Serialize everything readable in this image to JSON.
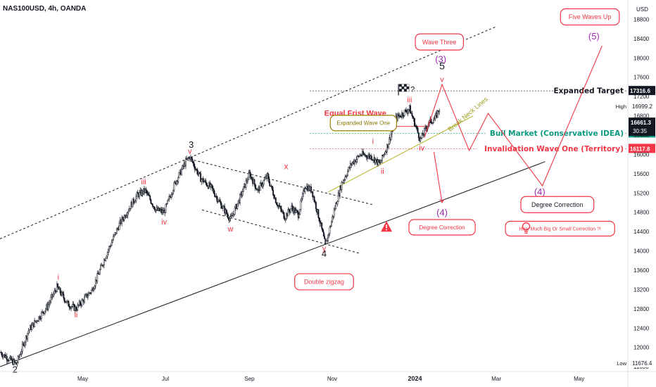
{
  "chart_data": {
    "type": "line",
    "title": "NAS100USD, 4h, OANDA",
    "currency": "USD",
    "yaxis": {
      "range": [
        11500,
        19200
      ],
      "ticks": [
        11600,
        12000,
        12400,
        12800,
        13200,
        13600,
        14000,
        14400,
        14800,
        15200,
        15600,
        16000,
        16400,
        16800,
        17200,
        17600,
        18000,
        18400,
        18800
      ]
    },
    "xaxis": {
      "range": [
        "2023-03-01",
        "2024-06-06"
      ],
      "ticks": [
        {
          "date": "2023-05-01",
          "label": "May"
        },
        {
          "date": "2023-07-01",
          "label": "Jul"
        },
        {
          "date": "2023-09-01",
          "label": "Sep"
        },
        {
          "date": "2023-11-01",
          "label": "Nov"
        },
        {
          "date": "2024-01-01",
          "label": "2024"
        },
        {
          "date": "2024-03-01",
          "label": "Mar"
        },
        {
          "date": "2024-05-01",
          "label": "May"
        }
      ]
    },
    "price_series": [
      {
        "date": "2023-03-01",
        "price": 11900
      },
      {
        "date": "2023-03-13",
        "price": 11650
      },
      {
        "date": "2023-03-22",
        "price": 12350
      },
      {
        "date": "2023-04-05",
        "price": 12850
      },
      {
        "date": "2023-04-12",
        "price": 13250
      },
      {
        "date": "2023-04-20",
        "price": 12900
      },
      {
        "date": "2023-04-26",
        "price": 12800
      },
      {
        "date": "2023-05-08",
        "price": 13200
      },
      {
        "date": "2023-05-18",
        "price": 13900
      },
      {
        "date": "2023-05-28",
        "price": 14550
      },
      {
        "date": "2023-06-10",
        "price": 15150
      },
      {
        "date": "2023-06-16",
        "price": 15250
      },
      {
        "date": "2023-06-24",
        "price": 14850
      },
      {
        "date": "2023-06-30",
        "price": 14800
      },
      {
        "date": "2023-07-08",
        "price": 15400
      },
      {
        "date": "2023-07-16",
        "price": 15850
      },
      {
        "date": "2023-07-19",
        "price": 15950
      },
      {
        "date": "2023-07-27",
        "price": 15500
      },
      {
        "date": "2023-08-04",
        "price": 15300
      },
      {
        "date": "2023-08-10",
        "price": 15000
      },
      {
        "date": "2023-08-18",
        "price": 14650
      },
      {
        "date": "2023-08-25",
        "price": 15100
      },
      {
        "date": "2023-09-01",
        "price": 15600
      },
      {
        "date": "2023-09-07",
        "price": 15250
      },
      {
        "date": "2023-09-14",
        "price": 15550
      },
      {
        "date": "2023-09-21",
        "price": 15000
      },
      {
        "date": "2023-09-27",
        "price": 14700
      },
      {
        "date": "2023-10-02",
        "price": 14900
      },
      {
        "date": "2023-10-07",
        "price": 14750
      },
      {
        "date": "2023-10-12",
        "price": 15350
      },
      {
        "date": "2023-10-17",
        "price": 15250
      },
      {
        "date": "2023-10-23",
        "price": 14600
      },
      {
        "date": "2023-10-27",
        "price": 14100
      },
      {
        "date": "2023-11-03",
        "price": 14900
      },
      {
        "date": "2023-11-08",
        "price": 15400
      },
      {
        "date": "2023-11-15",
        "price": 15800
      },
      {
        "date": "2023-11-22",
        "price": 16000
      },
      {
        "date": "2023-11-30",
        "price": 15950
      },
      {
        "date": "2023-12-06",
        "price": 15800
      },
      {
        "date": "2023-12-12",
        "price": 16200
      },
      {
        "date": "2023-12-18",
        "price": 16750
      },
      {
        "date": "2023-12-28",
        "price": 16950
      },
      {
        "date": "2024-01-05",
        "price": 16300
      },
      {
        "date": "2024-01-11",
        "price": 16650
      },
      {
        "date": "2024-01-16",
        "price": 16750
      },
      {
        "date": "2024-01-19",
        "price": 16950
      }
    ],
    "price_lines": [
      {
        "label": "Expanded Target",
        "price": 17316.6,
        "value_label": "17316.6",
        "color": "#131722"
      },
      {
        "label": "Bull Market (Conservative IDEA)",
        "price": 16438.3,
        "value_label": "16438.3",
        "color": "#089981"
      },
      {
        "label": "Invalidation Wave One (Territory)",
        "price": 16117.8,
        "value_label": "16117.8",
        "color": "#f23645"
      }
    ],
    "price_tags": [
      {
        "label": "High",
        "price": 16999.2,
        "value_label": "16999.2"
      },
      {
        "label": "Low",
        "price": 11676.4,
        "value_label": "11676.4"
      },
      {
        "label": "",
        "price": 16661.3,
        "value_label": "16661.3",
        "sub": "30:35"
      }
    ],
    "wave_labels": [
      {
        "text": "2",
        "date": "2023-03-12",
        "price": 11480,
        "color": "#131722",
        "size": 13
      },
      {
        "text": "i",
        "date": "2023-04-13",
        "price": 13400,
        "color": "#f23645",
        "size": 11
      },
      {
        "text": "ii",
        "date": "2023-04-26",
        "price": 12620,
        "color": "#f23645",
        "size": 11
      },
      {
        "text": "iii",
        "date": "2023-06-15",
        "price": 15380,
        "color": "#f23645",
        "size": 11
      },
      {
        "text": "iv",
        "date": "2023-06-30",
        "price": 14550,
        "color": "#f23645",
        "size": 11
      },
      {
        "text": "3",
        "date": "2023-07-20",
        "price": 16140,
        "color": "#131722",
        "size": 13
      },
      {
        "text": "v",
        "date": "2023-07-19",
        "price": 16010,
        "color": "#f23645",
        "size": 11
      },
      {
        "text": "w",
        "date": "2023-08-18",
        "price": 14400,
        "color": "#f23645",
        "size": 11
      },
      {
        "text": "x",
        "date": "2023-09-28",
        "price": 15690,
        "color": "#f23645",
        "size": 12
      },
      {
        "text": "y",
        "date": "2023-10-26",
        "price": 14000,
        "color": "#f23645",
        "size": 11
      },
      {
        "text": "4",
        "date": "2023-10-26",
        "price": 13880,
        "color": "#131722",
        "size": 13
      },
      {
        "text": "i",
        "date": "2023-12-01",
        "price": 16220,
        "color": "#f23645",
        "size": 11
      },
      {
        "text": "ii",
        "date": "2023-12-08",
        "price": 15600,
        "color": "#f23645",
        "size": 11
      },
      {
        "text": "iii",
        "date": "2023-12-28",
        "price": 17080,
        "color": "#f23645",
        "size": 11
      },
      {
        "text": "iv",
        "date": "2024-01-06",
        "price": 16080,
        "color": "#f23645",
        "size": 11
      },
      {
        "text": "v",
        "date": "2024-01-21",
        "price": 17500,
        "color": "#f23645",
        "size": 11
      },
      {
        "text": "5",
        "date": "2024-01-21",
        "price": 17760,
        "color": "#131722",
        "size": 14
      },
      {
        "text": "(3)",
        "date": "2024-01-20",
        "price": 17910,
        "color": "#9c27b0",
        "size": 13
      },
      {
        "text": "(4)",
        "date": "2024-01-21",
        "price": 14730,
        "color": "#9c27b0",
        "size": 13
      },
      {
        "text": "(4)",
        "date": "2024-04-02",
        "price": 15160,
        "color": "#9c27b0",
        "size": 13
      },
      {
        "text": "(5)",
        "date": "2024-05-12",
        "price": 18380,
        "color": "#9c27b0",
        "size": 13
      }
    ],
    "annotations": [
      {
        "text": "Equal Frist Wave",
        "date": "2023-11-18",
        "price": 16800,
        "color": "#f23645",
        "size": 11,
        "weight": "bold"
      },
      {
        "text": "Break Neck Lines",
        "date": "2024-02-10",
        "price": 16800,
        "color": "#9a9a14",
        "size": 9,
        "rotate": -40
      }
    ],
    "callouts": [
      {
        "text": "Wave Three",
        "date": "2024-01-19",
        "price": 18330,
        "color": "#f23645",
        "border": "#f23645",
        "size": 9
      },
      {
        "text": "Five Waves Up",
        "date": "2024-05-09",
        "price": 18850,
        "color": "#f23645",
        "border": "#f23645",
        "size": 9
      },
      {
        "text": "Expanded Wave One",
        "date": "2023-11-24",
        "price": 16650,
        "color": "#8b7500",
        "border": "#9a8100",
        "size": 8
      },
      {
        "text": "Degree Correction",
        "date": "2024-01-21",
        "price": 14490,
        "color": "#f23645",
        "border": "#f23645",
        "size": 8
      },
      {
        "text": "Degree Correction",
        "date": "2024-04-15",
        "price": 14960,
        "color": "#131722",
        "border": "#f23645",
        "size": 9
      },
      {
        "text": "How Much Big Or Small Correction ?!",
        "date": "2024-04-17",
        "price": 14460,
        "color": "#f23645",
        "border": "#f23645",
        "size": 7
      },
      {
        "text": "Double zigzag",
        "date": "2023-10-26",
        "price": 13360,
        "color": "#f23645",
        "border": "#f23645",
        "size": 9
      }
    ],
    "trend_lines": [
      {
        "name": "upper-channel",
        "from": {
          "date": "2023-03-01",
          "price": 14250
        },
        "to": {
          "date": "2024-03-01",
          "price": 18650
        },
        "color": "#131722",
        "dash": true
      },
      {
        "name": "lower-channel",
        "from": {
          "date": "2023-03-01",
          "price": 11600
        },
        "to": {
          "date": "2024-04-06",
          "price": 15850
        },
        "color": "#131722",
        "dash": false
      },
      {
        "name": "corr-upper",
        "from": {
          "date": "2023-07-22",
          "price": 15880
        },
        "to": {
          "date": "2023-12-02",
          "price": 14950
        },
        "color": "#131722",
        "dash": true
      },
      {
        "name": "corr-lower",
        "from": {
          "date": "2023-07-28",
          "price": 14850
        },
        "to": {
          "date": "2023-11-21",
          "price": 13950
        },
        "color": "#131722",
        "dash": true
      },
      {
        "name": "neckline",
        "from": {
          "date": "2023-10-29",
          "price": 15220
        },
        "to": {
          "date": "2024-02-13",
          "price": 16800
        },
        "color": "#b5b520",
        "dash": false
      },
      {
        "name": "equal-wave",
        "from": {
          "date": "2023-11-15",
          "price": 16580
        },
        "to": {
          "date": "2024-01-11",
          "price": 16580
        },
        "color": "#f23645",
        "dash": false
      }
    ],
    "projections": [
      {
        "name": "path-main",
        "points": [
          {
            "date": "2024-01-08",
            "price": 16350
          },
          {
            "date": "2024-01-21",
            "price": 17450
          },
          {
            "date": "2024-02-10",
            "price": 16080
          },
          {
            "date": "2024-02-24",
            "price": 16850
          },
          {
            "date": "2024-04-04",
            "price": 15350
          },
          {
            "date": "2024-05-18",
            "price": 18250
          }
        ]
      },
      {
        "name": "path-alt",
        "points": [
          {
            "date": "2024-01-15",
            "price": 16050
          },
          {
            "date": "2024-01-21",
            "price": 15000
          }
        ]
      }
    ],
    "icons": [
      {
        "name": "finish-flag-icon",
        "date": "2023-12-24",
        "price": 17340,
        "extra": "?"
      },
      {
        "name": "warning-icon",
        "date": "2023-12-11",
        "price": 14500
      },
      {
        "name": "bulb-icon",
        "date": "2024-03-23",
        "price": 14480
      }
    ],
    "grid": false,
    "colors": {
      "up": "#131722",
      "red": "#f23645",
      "purple": "#9c27b0",
      "green": "#089981",
      "olive": "#9a9a14"
    }
  }
}
